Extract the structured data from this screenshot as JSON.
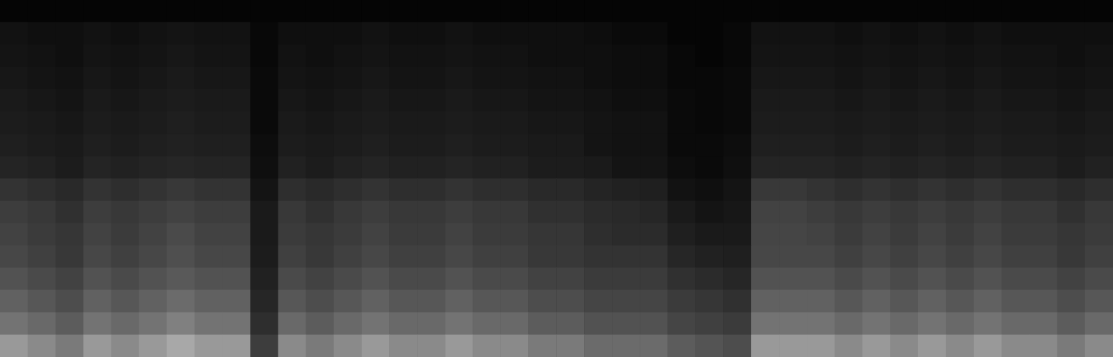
{
  "chart_data": {
    "type": "heatmap",
    "tick_labels": false,
    "grid": false,
    "zlim": [
      0,
      100
    ],
    "cells": [
      [
        2,
        2,
        2,
        2,
        2,
        2,
        2,
        2,
        2,
        2,
        2,
        2,
        2,
        2,
        2,
        2,
        2,
        2,
        2,
        2,
        2,
        2,
        2,
        2,
        2,
        2,
        2,
        2,
        2,
        2,
        2,
        2,
        2,
        2,
        2,
        2,
        2,
        2,
        2,
        2
      ],
      [
        7,
        6,
        6,
        7,
        6,
        7,
        8,
        7,
        7,
        3,
        6,
        6,
        6,
        7,
        6,
        6,
        7,
        6,
        6,
        6,
        6,
        5,
        4,
        4,
        2,
        2,
        3,
        7,
        7,
        7,
        6,
        7,
        6,
        7,
        6,
        7,
        6,
        6,
        6,
        6
      ],
      [
        8,
        7,
        6,
        8,
        7,
        8,
        9,
        8,
        8,
        3,
        7,
        6,
        7,
        8,
        7,
        7,
        8,
        7,
        7,
        6,
        6,
        6,
        5,
        5,
        3,
        2,
        3,
        8,
        8,
        8,
        7,
        8,
        7,
        8,
        7,
        8,
        7,
        7,
        6,
        7
      ],
      [
        9,
        8,
        7,
        9,
        8,
        9,
        10,
        9,
        9,
        4,
        8,
        7,
        8,
        9,
        8,
        8,
        9,
        8,
        8,
        7,
        7,
        6,
        5,
        5,
        3,
        3,
        4,
        9,
        9,
        9,
        8,
        9,
        8,
        9,
        8,
        9,
        8,
        8,
        7,
        8
      ],
      [
        10,
        9,
        8,
        10,
        9,
        10,
        11,
        10,
        10,
        4,
        9,
        8,
        9,
        10,
        9,
        9,
        10,
        9,
        9,
        8,
        8,
        7,
        6,
        6,
        4,
        3,
        4,
        10,
        10,
        10,
        9,
        10,
        9,
        10,
        9,
        10,
        9,
        9,
        8,
        9
      ],
      [
        11,
        10,
        9,
        11,
        10,
        11,
        12,
        11,
        11,
        4,
        10,
        9,
        10,
        11,
        10,
        10,
        11,
        10,
        10,
        9,
        9,
        8,
        7,
        7,
        4,
        3,
        4,
        11,
        11,
        11,
        10,
        11,
        10,
        11,
        10,
        11,
        10,
        10,
        9,
        10
      ],
      [
        12,
        11,
        10,
        12,
        11,
        12,
        13,
        12,
        12,
        5,
        11,
        10,
        11,
        12,
        11,
        11,
        12,
        11,
        11,
        10,
        10,
        8,
        7,
        7,
        4,
        4,
        5,
        12,
        12,
        12,
        11,
        12,
        11,
        12,
        11,
        12,
        11,
        11,
        10,
        11
      ],
      [
        14,
        13,
        11,
        14,
        13,
        14,
        15,
        14,
        14,
        6,
        13,
        11,
        13,
        14,
        13,
        13,
        14,
        13,
        13,
        11,
        11,
        10,
        8,
        8,
        5,
        4,
        6,
        14,
        14,
        14,
        13,
        14,
        13,
        14,
        13,
        14,
        13,
        13,
        11,
        13
      ],
      [
        20,
        18,
        16,
        20,
        18,
        20,
        22,
        20,
        20,
        8,
        18,
        16,
        18,
        20,
        18,
        18,
        20,
        18,
        18,
        16,
        16,
        14,
        13,
        12,
        7,
        6,
        8,
        22,
        22,
        20,
        18,
        20,
        18,
        20,
        18,
        20,
        18,
        18,
        16,
        18
      ],
      [
        24,
        22,
        19,
        24,
        22,
        24,
        26,
        24,
        24,
        10,
        22,
        19,
        22,
        24,
        22,
        22,
        24,
        22,
        22,
        19,
        19,
        17,
        16,
        15,
        10,
        8,
        9,
        26,
        26,
        24,
        22,
        24,
        22,
        24,
        22,
        24,
        22,
        22,
        19,
        22
      ],
      [
        26,
        23,
        21,
        26,
        23,
        26,
        29,
        26,
        26,
        10,
        23,
        21,
        23,
        26,
        23,
        23,
        26,
        23,
        23,
        21,
        21,
        18,
        17,
        17,
        12,
        10,
        10,
        27,
        27,
        26,
        23,
        26,
        23,
        26,
        23,
        26,
        23,
        23,
        21,
        23
      ],
      [
        28,
        25,
        22,
        28,
        25,
        28,
        31,
        28,
        28,
        11,
        25,
        22,
        25,
        28,
        25,
        25,
        28,
        25,
        25,
        22,
        22,
        20,
        20,
        20,
        15,
        13,
        12,
        28,
        28,
        28,
        25,
        28,
        25,
        28,
        25,
        28,
        25,
        25,
        22,
        25
      ],
      [
        32,
        29,
        26,
        32,
        29,
        32,
        35,
        32,
        32,
        13,
        29,
        26,
        29,
        32,
        29,
        29,
        32,
        29,
        29,
        26,
        26,
        23,
        23,
        23,
        19,
        17,
        15,
        32,
        32,
        32,
        29,
        32,
        29,
        32,
        29,
        32,
        29,
        29,
        26,
        29
      ],
      [
        38,
        34,
        30,
        38,
        34,
        38,
        42,
        38,
        38,
        15,
        34,
        30,
        34,
        38,
        34,
        34,
        38,
        34,
        34,
        30,
        30,
        27,
        27,
        27,
        23,
        21,
        19,
        38,
        38,
        38,
        34,
        38,
        34,
        38,
        34,
        38,
        34,
        34,
        30,
        34
      ],
      [
        45,
        41,
        36,
        45,
        41,
        45,
        50,
        45,
        45,
        18,
        41,
        36,
        41,
        45,
        41,
        41,
        45,
        41,
        41,
        36,
        36,
        32,
        32,
        32,
        27,
        25,
        23,
        45,
        45,
        45,
        41,
        45,
        41,
        45,
        41,
        45,
        41,
        41,
        36,
        41
      ],
      [
        60,
        54,
        48,
        60,
        54,
        60,
        66,
        60,
        60,
        24,
        54,
        48,
        54,
        60,
        54,
        54,
        60,
        54,
        54,
        48,
        48,
        42,
        42,
        42,
        36,
        33,
        30,
        60,
        60,
        60,
        54,
        60,
        54,
        60,
        54,
        60,
        54,
        54,
        48,
        54
      ]
    ]
  }
}
